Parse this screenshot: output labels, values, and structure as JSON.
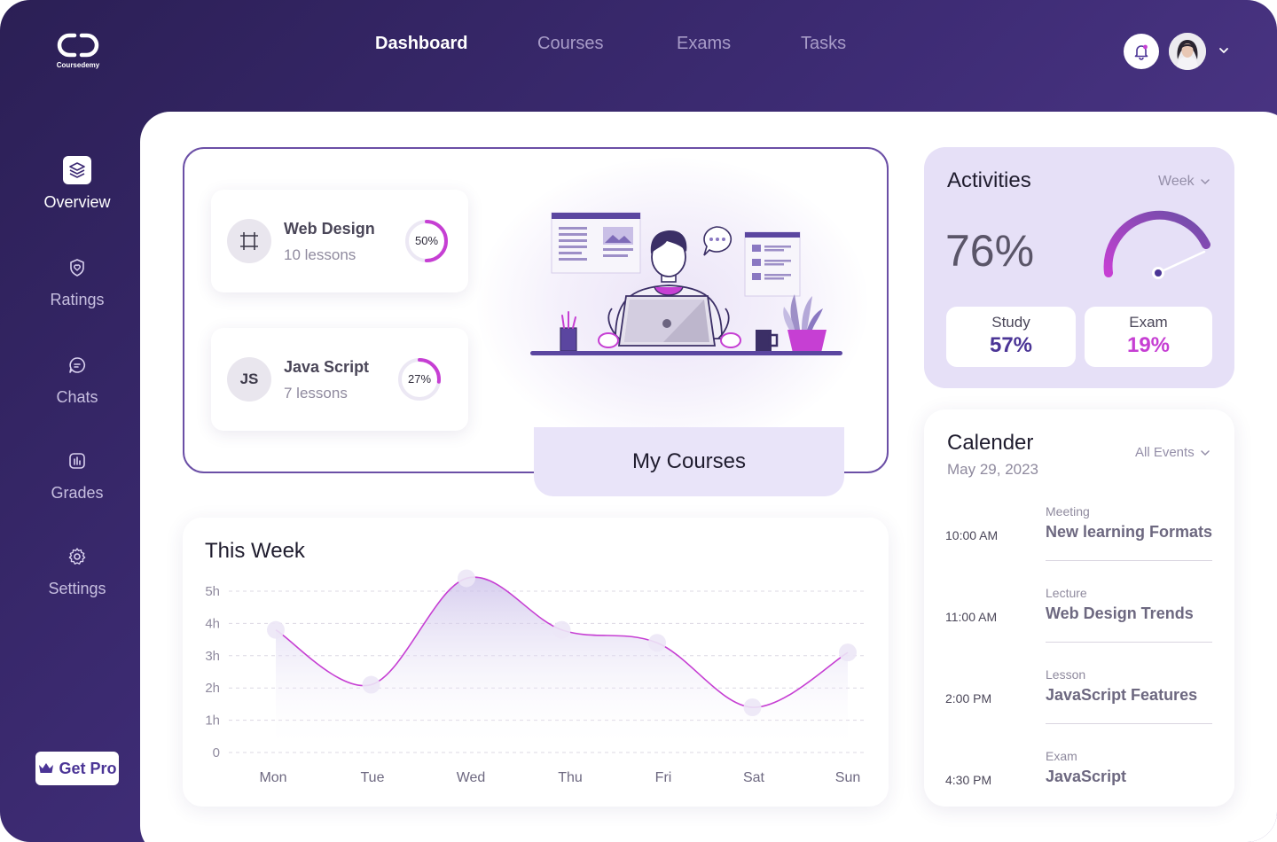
{
  "brand": {
    "name": "Coursedemy"
  },
  "nav": {
    "items": [
      "Dashboard",
      "Courses",
      "Exams",
      "Tasks"
    ],
    "active": "Dashboard"
  },
  "sidebar": {
    "items": [
      {
        "label": "Overview",
        "icon": "layers-icon"
      },
      {
        "label": "Ratings",
        "icon": "shield-heart-icon"
      },
      {
        "label": "Chats",
        "icon": "chat-icon"
      },
      {
        "label": "Grades",
        "icon": "bar-chart-icon"
      },
      {
        "label": "Settings",
        "icon": "gear-icon"
      }
    ],
    "active": "Overview",
    "get_pro": "Get Pro"
  },
  "courses": {
    "tab_label": "My Courses",
    "items": [
      {
        "title": "Web Design",
        "lessons": "10 lessons",
        "progress": 50,
        "progress_label": "50%",
        "icon": "frame-icon"
      },
      {
        "title": "Java Script",
        "lessons": "7 lessons",
        "progress": 27,
        "progress_label": "27%",
        "icon": "JS"
      }
    ]
  },
  "week": {
    "title": "This Week",
    "chart_data": {
      "type": "area",
      "title": "This Week",
      "categories": [
        "Mon",
        "Tue",
        "Wed",
        "Thu",
        "Fri",
        "Sat",
        "Sun"
      ],
      "values": [
        3.8,
        2.1,
        5.4,
        3.8,
        3.4,
        1.4,
        3.1
      ],
      "y_ticks": [
        "0",
        "1h",
        "2h",
        "3h",
        "4h",
        "5h"
      ],
      "ylim": [
        0,
        5
      ],
      "grid": true
    }
  },
  "activities": {
    "title": "Activities",
    "period": "Week",
    "percent": "76%",
    "gauge_value": 76,
    "stats": [
      {
        "label": "Study",
        "value": "57%",
        "color": "#4b3596"
      },
      {
        "label": "Exam",
        "value": "19%",
        "color": "#c63fd3"
      }
    ]
  },
  "calendar": {
    "title": "Calender",
    "date": "May 29, 2023",
    "filter": "All Events",
    "events": [
      {
        "time": "10:00 AM",
        "type": "Meeting",
        "title": "New learning Formats"
      },
      {
        "time": "11:00 AM",
        "type": "Lecture",
        "title": "Web Design Trends"
      },
      {
        "time": "2:00 PM",
        "type": "Lesson",
        "title": "JavaScript Features"
      },
      {
        "time": "4:30 PM",
        "type": "Exam",
        "title": "JavaScript"
      }
    ]
  },
  "colors": {
    "primary": "#4b3596",
    "accent": "#c63fd3",
    "lavender": "#e6e0f7"
  }
}
